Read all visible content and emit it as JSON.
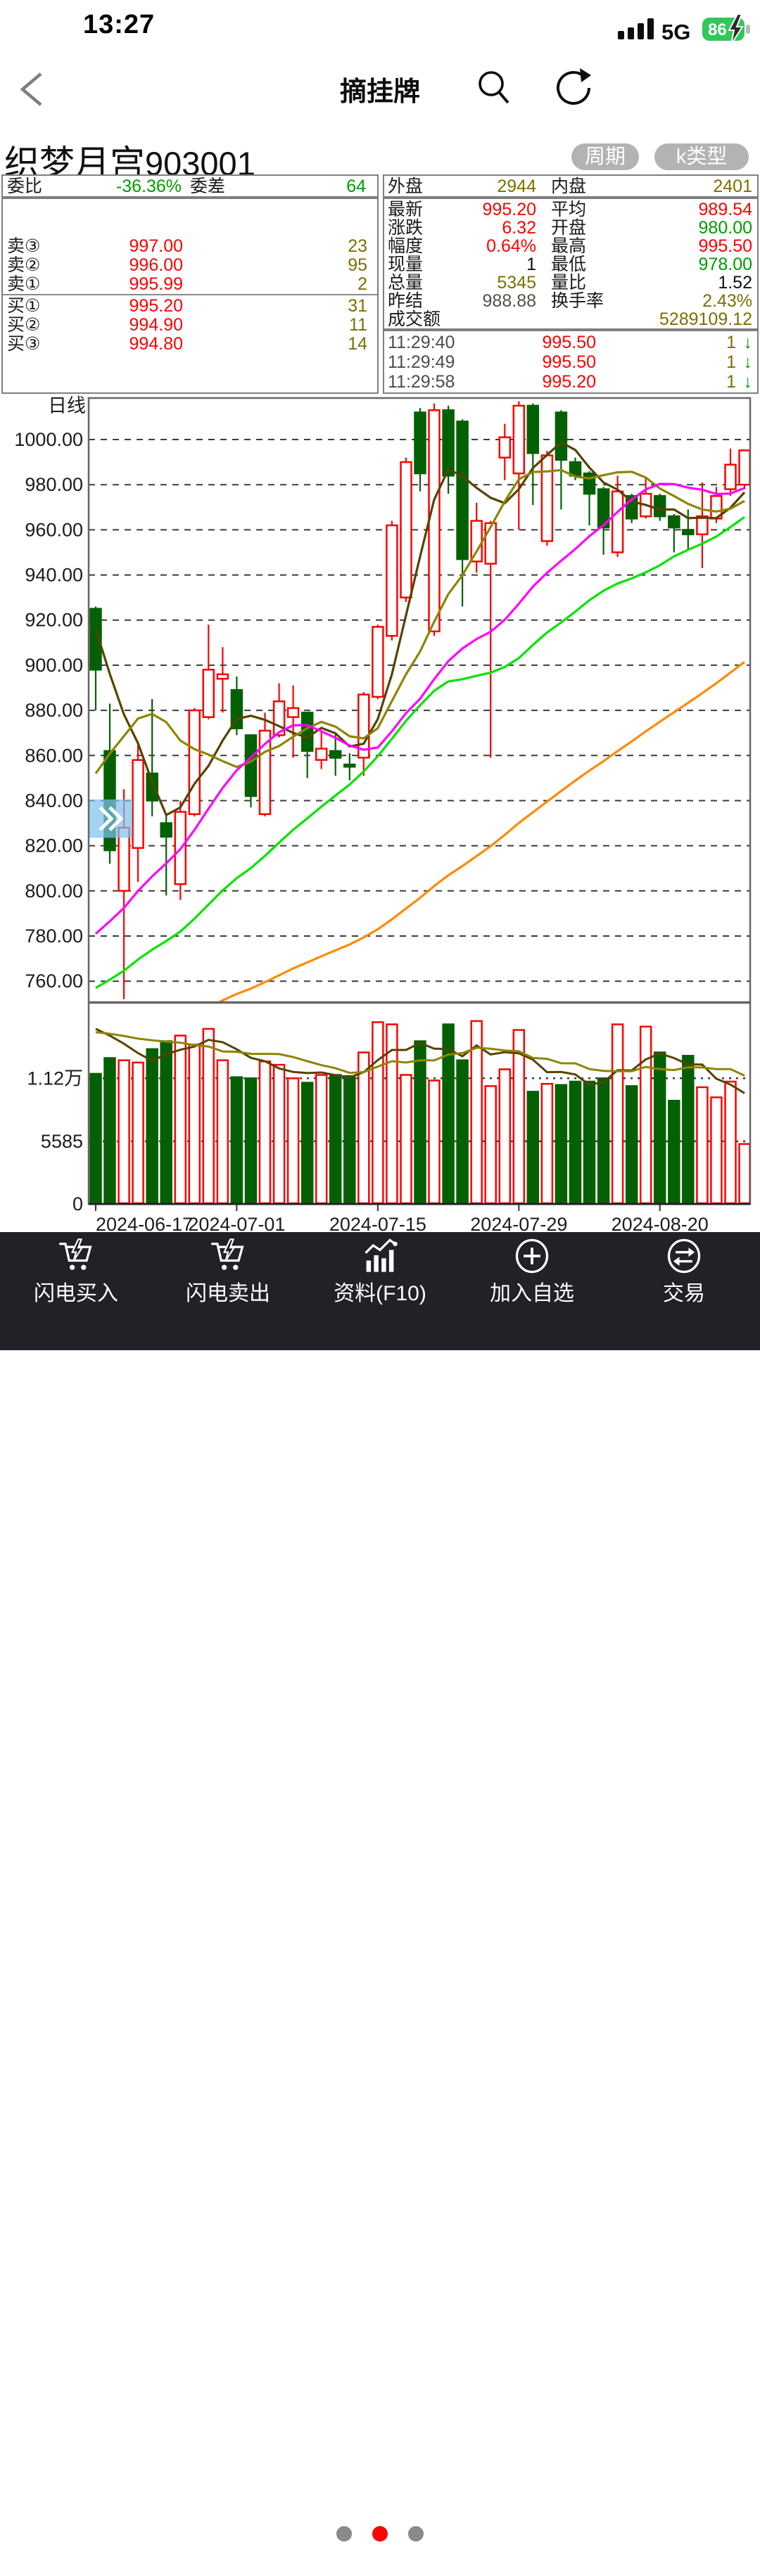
{
  "status_bar": {
    "time": "13:27",
    "network": "5G",
    "battery_percent": "86"
  },
  "nav": {
    "title": "摘挂牌"
  },
  "stock": {
    "name": "织梦月宫",
    "code": "903001",
    "period_button": "周期",
    "ktype_button": "k类型"
  },
  "order_book": {
    "weibi_label": "委比",
    "weibi_value": "-36.36%",
    "weicha_label": "委差",
    "weicha_value": "64",
    "asks": [
      {
        "label": "卖③",
        "price": "997.00",
        "qty": "23"
      },
      {
        "label": "卖②",
        "price": "996.00",
        "qty": "95"
      },
      {
        "label": "卖①",
        "price": "995.99",
        "qty": "2"
      }
    ],
    "bids": [
      {
        "label": "买①",
        "price": "995.20",
        "qty": "31"
      },
      {
        "label": "买②",
        "price": "994.90",
        "qty": "11"
      },
      {
        "label": "买③",
        "price": "994.80",
        "qty": "14"
      }
    ]
  },
  "quote": {
    "waipan_label": "外盘",
    "waipan": "2944",
    "neipan_label": "内盘",
    "neipan": "2401",
    "rows": [
      {
        "l1": "最新",
        "v1": "995.20",
        "l2": "平均",
        "v2": "989.54"
      },
      {
        "l1": "涨跌",
        "v1": "6.32",
        "l2": "开盘",
        "v2": "980.00"
      },
      {
        "l1": "幅度",
        "v1": "0.64%",
        "l2": "最高",
        "v2": "995.50"
      },
      {
        "l1": "现量",
        "v1": "1",
        "l2": "最低",
        "v2": "978.00"
      },
      {
        "l1": "总量",
        "v1": "5345",
        "l2": "量比",
        "v2": "1.52"
      },
      {
        "l1": "昨结",
        "v1": "988.88",
        "l2": "换手率",
        "v2": "2.43%"
      }
    ],
    "turnover_label": "成交额",
    "turnover": "5289109.12"
  },
  "tick_list": [
    {
      "time": "11:29:40",
      "price": "995.50",
      "qty": "1",
      "arrow": "↓"
    },
    {
      "time": "11:29:49",
      "price": "995.50",
      "qty": "1",
      "arrow": "↓"
    },
    {
      "time": "11:29:58",
      "price": "995.20",
      "qty": "1",
      "arrow": "↓"
    }
  ],
  "chart_data": {
    "type": "candlestick",
    "period_label": "日线",
    "ylim": [
      750.7,
      1018.4
    ],
    "y_gridlines": [
      {
        "value": 1000,
        "label": "1000.00"
      },
      {
        "value": 980,
        "label": "980.00"
      },
      {
        "value": 960,
        "label": "960.00"
      },
      {
        "value": 940,
        "label": "940.00"
      },
      {
        "value": 920,
        "label": "920.00"
      },
      {
        "value": 900,
        "label": "900.00"
      },
      {
        "value": 880,
        "label": "880.00"
      },
      {
        "value": 860,
        "label": "860.00"
      },
      {
        "value": 840,
        "label": "840.00"
      },
      {
        "value": 820,
        "label": "820.00"
      },
      {
        "value": 800,
        "label": "800.00"
      },
      {
        "value": 780,
        "label": "780.00"
      },
      {
        "value": 760,
        "label": "760.00"
      }
    ],
    "vol_ylim": [
      0,
      17920
    ],
    "vol_gridlines": [
      {
        "value": 11200,
        "label": "1.12万"
      },
      {
        "value": 5585,
        "label": "5585"
      }
    ],
    "vol_zero_label": "0",
    "x_ticks": [
      {
        "index": 0,
        "label": "2024-06-17"
      },
      {
        "index": 10,
        "label": "2024-07-01"
      },
      {
        "index": 20,
        "label": "2024-07-15"
      },
      {
        "index": 30,
        "label": "2024-07-29"
      },
      {
        "index": 40,
        "label": "2024-08-20"
      }
    ],
    "open": [
      925,
      862,
      800,
      819,
      852,
      830,
      803,
      834,
      877,
      894,
      889,
      869,
      834,
      869,
      877,
      879,
      858,
      862,
      856,
      859,
      886,
      913,
      930,
      1012,
      915,
      1013,
      1008,
      946,
      945,
      992,
      985,
      1015,
      955,
      1012,
      990,
      985,
      978,
      950,
      975,
      966,
      975,
      966,
      960,
      958,
      965,
      978,
      980
    ],
    "close": [
      898,
      818,
      828,
      858,
      840,
      824,
      835,
      880,
      898,
      896,
      872,
      842,
      871,
      884,
      881,
      862,
      863,
      859,
      855,
      887,
      917,
      962,
      990,
      985,
      1013,
      984,
      947,
      964,
      963,
      1001,
      1015,
      994,
      993,
      991,
      984,
      976,
      961,
      977,
      965,
      976,
      966,
      961,
      958,
      966,
      975,
      988.88,
      995.2
    ],
    "high": [
      926,
      883,
      845,
      866,
      885,
      834,
      840,
      881,
      918,
      908,
      895,
      869,
      879,
      892,
      891,
      879,
      871,
      870,
      861,
      888,
      918,
      964,
      992,
      1014,
      1016,
      1015,
      1009,
      972,
      964,
      1007,
      1017,
      1016,
      995,
      1013,
      992,
      986,
      979,
      984,
      976,
      983,
      976,
      967,
      969,
      981,
      979,
      996,
      995.5
    ],
    "low": [
      880,
      812,
      752,
      804,
      833,
      798,
      796,
      833,
      876,
      879,
      869,
      837,
      833,
      868,
      859,
      850,
      854,
      851,
      849,
      851,
      885,
      911,
      928,
      977,
      913,
      976,
      926,
      941,
      859,
      982,
      960,
      971,
      953,
      969,
      982,
      962,
      949,
      948,
      963,
      965,
      964,
      950,
      951,
      943,
      963,
      975,
      978
    ],
    "volume": [
      11600,
      13000,
      12800,
      12600,
      13800,
      14500,
      15000,
      14200,
      15600,
      12800,
      11300,
      11200,
      12700,
      12400,
      11200,
      10800,
      11500,
      11500,
      11400,
      13500,
      16200,
      16000,
      11500,
      14500,
      11000,
      16000,
      12800,
      16300,
      10500,
      12000,
      15500,
      10000,
      10700,
      10600,
      10900,
      10900,
      11200,
      16000,
      10500,
      15800,
      13500,
      9200,
      13200,
      10400,
      9500,
      10900,
      5345
    ],
    "price_prehistory": [
      925,
      922,
      918,
      917,
      860,
      820,
      780,
      750,
      730,
      715,
      712,
      710,
      710,
      709,
      709,
      710,
      708,
      709,
      708,
      709,
      709,
      709,
      709,
      709,
      709,
      709,
      709,
      709,
      709,
      700,
      700,
      700,
      700,
      700,
      700,
      700,
      700,
      700,
      700,
      700,
      700,
      700,
      700,
      700,
      700,
      700,
      700,
      700,
      700,
      700,
      700,
      700,
      700,
      700,
      700,
      700,
      700,
      700,
      700
    ],
    "vol_prehistory": [
      17200,
      16800,
      16400,
      16000,
      15600,
      15300,
      15000,
      14700,
      14400
    ],
    "ma_lines": [
      {
        "name": "MA5",
        "window": 5,
        "color": "#564300"
      },
      {
        "name": "MA10",
        "window": 10,
        "color": "#8d8500"
      },
      {
        "name": "MA20",
        "window": 20,
        "color": "#ff00ff"
      },
      {
        "name": "MA30",
        "window": 30,
        "color": "#00e400"
      },
      {
        "name": "MA60",
        "window": 60,
        "color": "#ff8a00"
      }
    ],
    "vol_ma_lines": [
      {
        "name": "VOLMA5",
        "window": 5,
        "color": "#564300"
      },
      {
        "name": "VOLMA10",
        "window": 10,
        "color": "#8d8500"
      }
    ],
    "colors": {
      "up": "#fa0400",
      "down": "#056005",
      "grid": "#3c3c3c",
      "axis": "#666666"
    },
    "overlay": {
      "price_top": 840.5,
      "price_bottom": 823.5,
      "color": "#7fc0ee",
      "chevron": "»"
    }
  },
  "bottom_nav": {
    "items": [
      {
        "label": "闪电买入",
        "icon": "cart-lightning"
      },
      {
        "label": "闪电卖出",
        "icon": "cart-lightning"
      },
      {
        "label": "资料(F10)",
        "icon": "bar-chart"
      },
      {
        "label": "加入自选",
        "icon": "circle-plus"
      },
      {
        "label": "交易",
        "icon": "circle-swap"
      }
    ],
    "dots": {
      "count": 3,
      "active_index": 1,
      "active_color": "#fb0400",
      "inactive_color": "#8a8a8a"
    }
  }
}
